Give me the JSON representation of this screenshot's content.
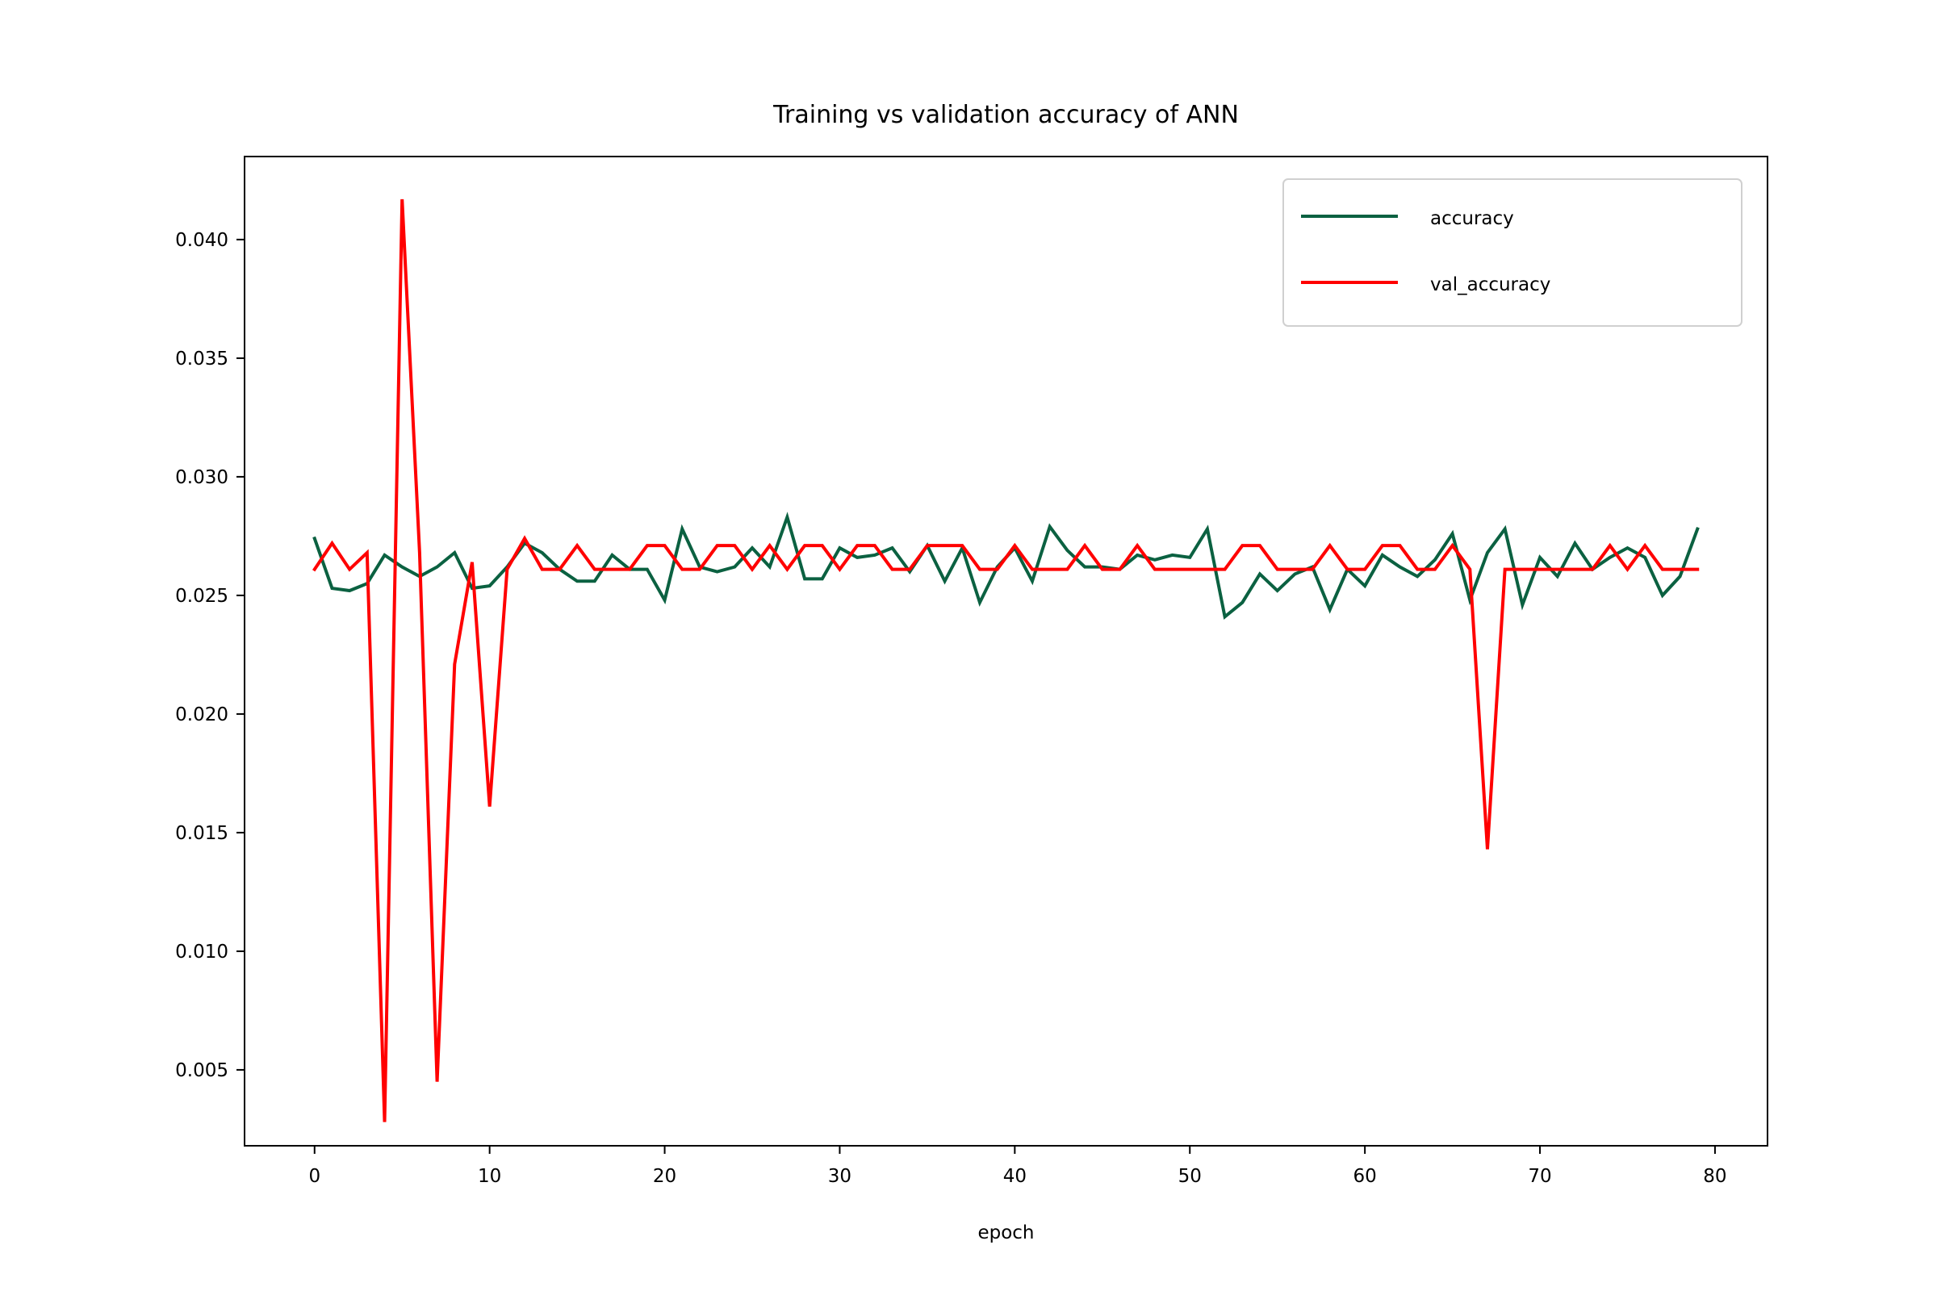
{
  "chart_data": {
    "type": "line",
    "title": "Training vs validation accuracy of ANN",
    "xlabel": "epoch",
    "ylabel": "",
    "xlim": [
      -4,
      83
    ],
    "ylim": [
      0.0018,
      0.0435
    ],
    "xticks": [
      0,
      10,
      20,
      30,
      40,
      50,
      60,
      70,
      80
    ],
    "xtick_labels": [
      "0",
      "10",
      "20",
      "30",
      "40",
      "50",
      "60",
      "70",
      "80"
    ],
    "yticks": [
      0.005,
      0.01,
      0.015,
      0.02,
      0.025,
      0.03,
      0.035,
      0.04
    ],
    "ytick_labels": [
      "0.005",
      "0.010",
      "0.015",
      "0.020",
      "0.025",
      "0.030",
      "0.035",
      "0.040"
    ],
    "grid": false,
    "legend_position": "top-right",
    "series": [
      {
        "name": "accuracy",
        "color": "#0b6141",
        "values": [
          0.0274,
          0.0253,
          0.0252,
          0.0255,
          0.0267,
          0.0262,
          0.0258,
          0.0262,
          0.0268,
          0.0253,
          0.0254,
          0.0262,
          0.0272,
          0.0268,
          0.0261,
          0.0256,
          0.0256,
          0.0267,
          0.0261,
          0.0261,
          0.0248,
          0.0278,
          0.0262,
          0.026,
          0.0262,
          0.027,
          0.0262,
          0.0283,
          0.0257,
          0.0257,
          0.027,
          0.0266,
          0.0267,
          0.027,
          0.026,
          0.0271,
          0.0256,
          0.027,
          0.0247,
          0.0262,
          0.027,
          0.0256,
          0.0279,
          0.0269,
          0.0262,
          0.0262,
          0.0261,
          0.0267,
          0.0265,
          0.0267,
          0.0266,
          0.0278,
          0.0241,
          0.0247,
          0.0259,
          0.0252,
          0.0259,
          0.0262,
          0.0244,
          0.0261,
          0.0254,
          0.0267,
          0.0262,
          0.0258,
          0.0265,
          0.0276,
          0.0248,
          0.0268,
          0.0278,
          0.0246,
          0.0266,
          0.0258,
          0.0272,
          0.0261,
          0.0266,
          0.027,
          0.0266,
          0.025,
          0.0258,
          0.0278
        ]
      },
      {
        "name": "val_accuracy",
        "color": "#ff0000",
        "values": [
          0.0261,
          0.0272,
          0.0261,
          0.0268,
          0.0028,
          0.0417,
          0.0268,
          0.0045,
          0.0221,
          0.0264,
          0.0161,
          0.0261,
          0.0274,
          0.0261,
          0.0261,
          0.0271,
          0.0261,
          0.0261,
          0.0261,
          0.0271,
          0.0271,
          0.0261,
          0.0261,
          0.0271,
          0.0271,
          0.0261,
          0.0271,
          0.0261,
          0.0271,
          0.0271,
          0.0261,
          0.0271,
          0.0271,
          0.0261,
          0.0261,
          0.0271,
          0.0271,
          0.0271,
          0.0261,
          0.0261,
          0.0271,
          0.0261,
          0.0261,
          0.0261,
          0.0271,
          0.0261,
          0.0261,
          0.0271,
          0.0261,
          0.0261,
          0.0261,
          0.0261,
          0.0261,
          0.0271,
          0.0271,
          0.0261,
          0.0261,
          0.0261,
          0.0271,
          0.0261,
          0.0261,
          0.0271,
          0.0271,
          0.0261,
          0.0261,
          0.0271,
          0.0261,
          0.0143,
          0.0261,
          0.0261,
          0.0261,
          0.0261,
          0.0261,
          0.0261,
          0.0271,
          0.0261,
          0.0271,
          0.0261,
          0.0261,
          0.0261
        ]
      }
    ]
  }
}
